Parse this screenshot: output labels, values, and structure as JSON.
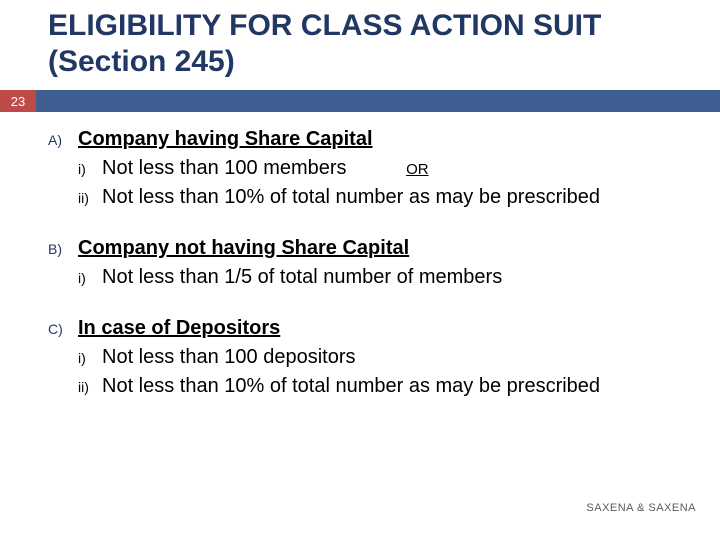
{
  "slide": {
    "number": "23",
    "title": "ELIGIBILITY FOR CLASS ACTION SUIT (Section 245)"
  },
  "colors": {
    "title_color": "#203863",
    "bar_bg": "#3f5f93",
    "slide_num_bg": "#be4b48",
    "slide_num_fg": "#ffffff",
    "body_text": "#000000",
    "footer_text": "#5b5b5b"
  },
  "sections": [
    {
      "marker": "A)",
      "heading": "Company having Share Capital",
      "items": [
        {
          "marker": "i)",
          "text": "Not less than 100 members",
          "or_after": "OR"
        },
        {
          "marker": "ii)",
          "text": "Not less than 10% of total number as may be prescribed",
          "justified": true
        }
      ]
    },
    {
      "marker": "B)",
      "heading": "Company not having Share Capital",
      "items": [
        {
          "marker": "i)",
          "text": "Not less than 1/5 of total number of members"
        }
      ]
    },
    {
      "marker": "C)",
      "heading": "In case of Depositors",
      "items": [
        {
          "marker": "i)",
          "text": "Not less than 100 depositors"
        },
        {
          "marker": "ii)",
          "text": "Not less than 10% of total number as may be prescribed",
          "justified": true
        }
      ]
    }
  ],
  "footer": "SAXENA & SAXENA"
}
